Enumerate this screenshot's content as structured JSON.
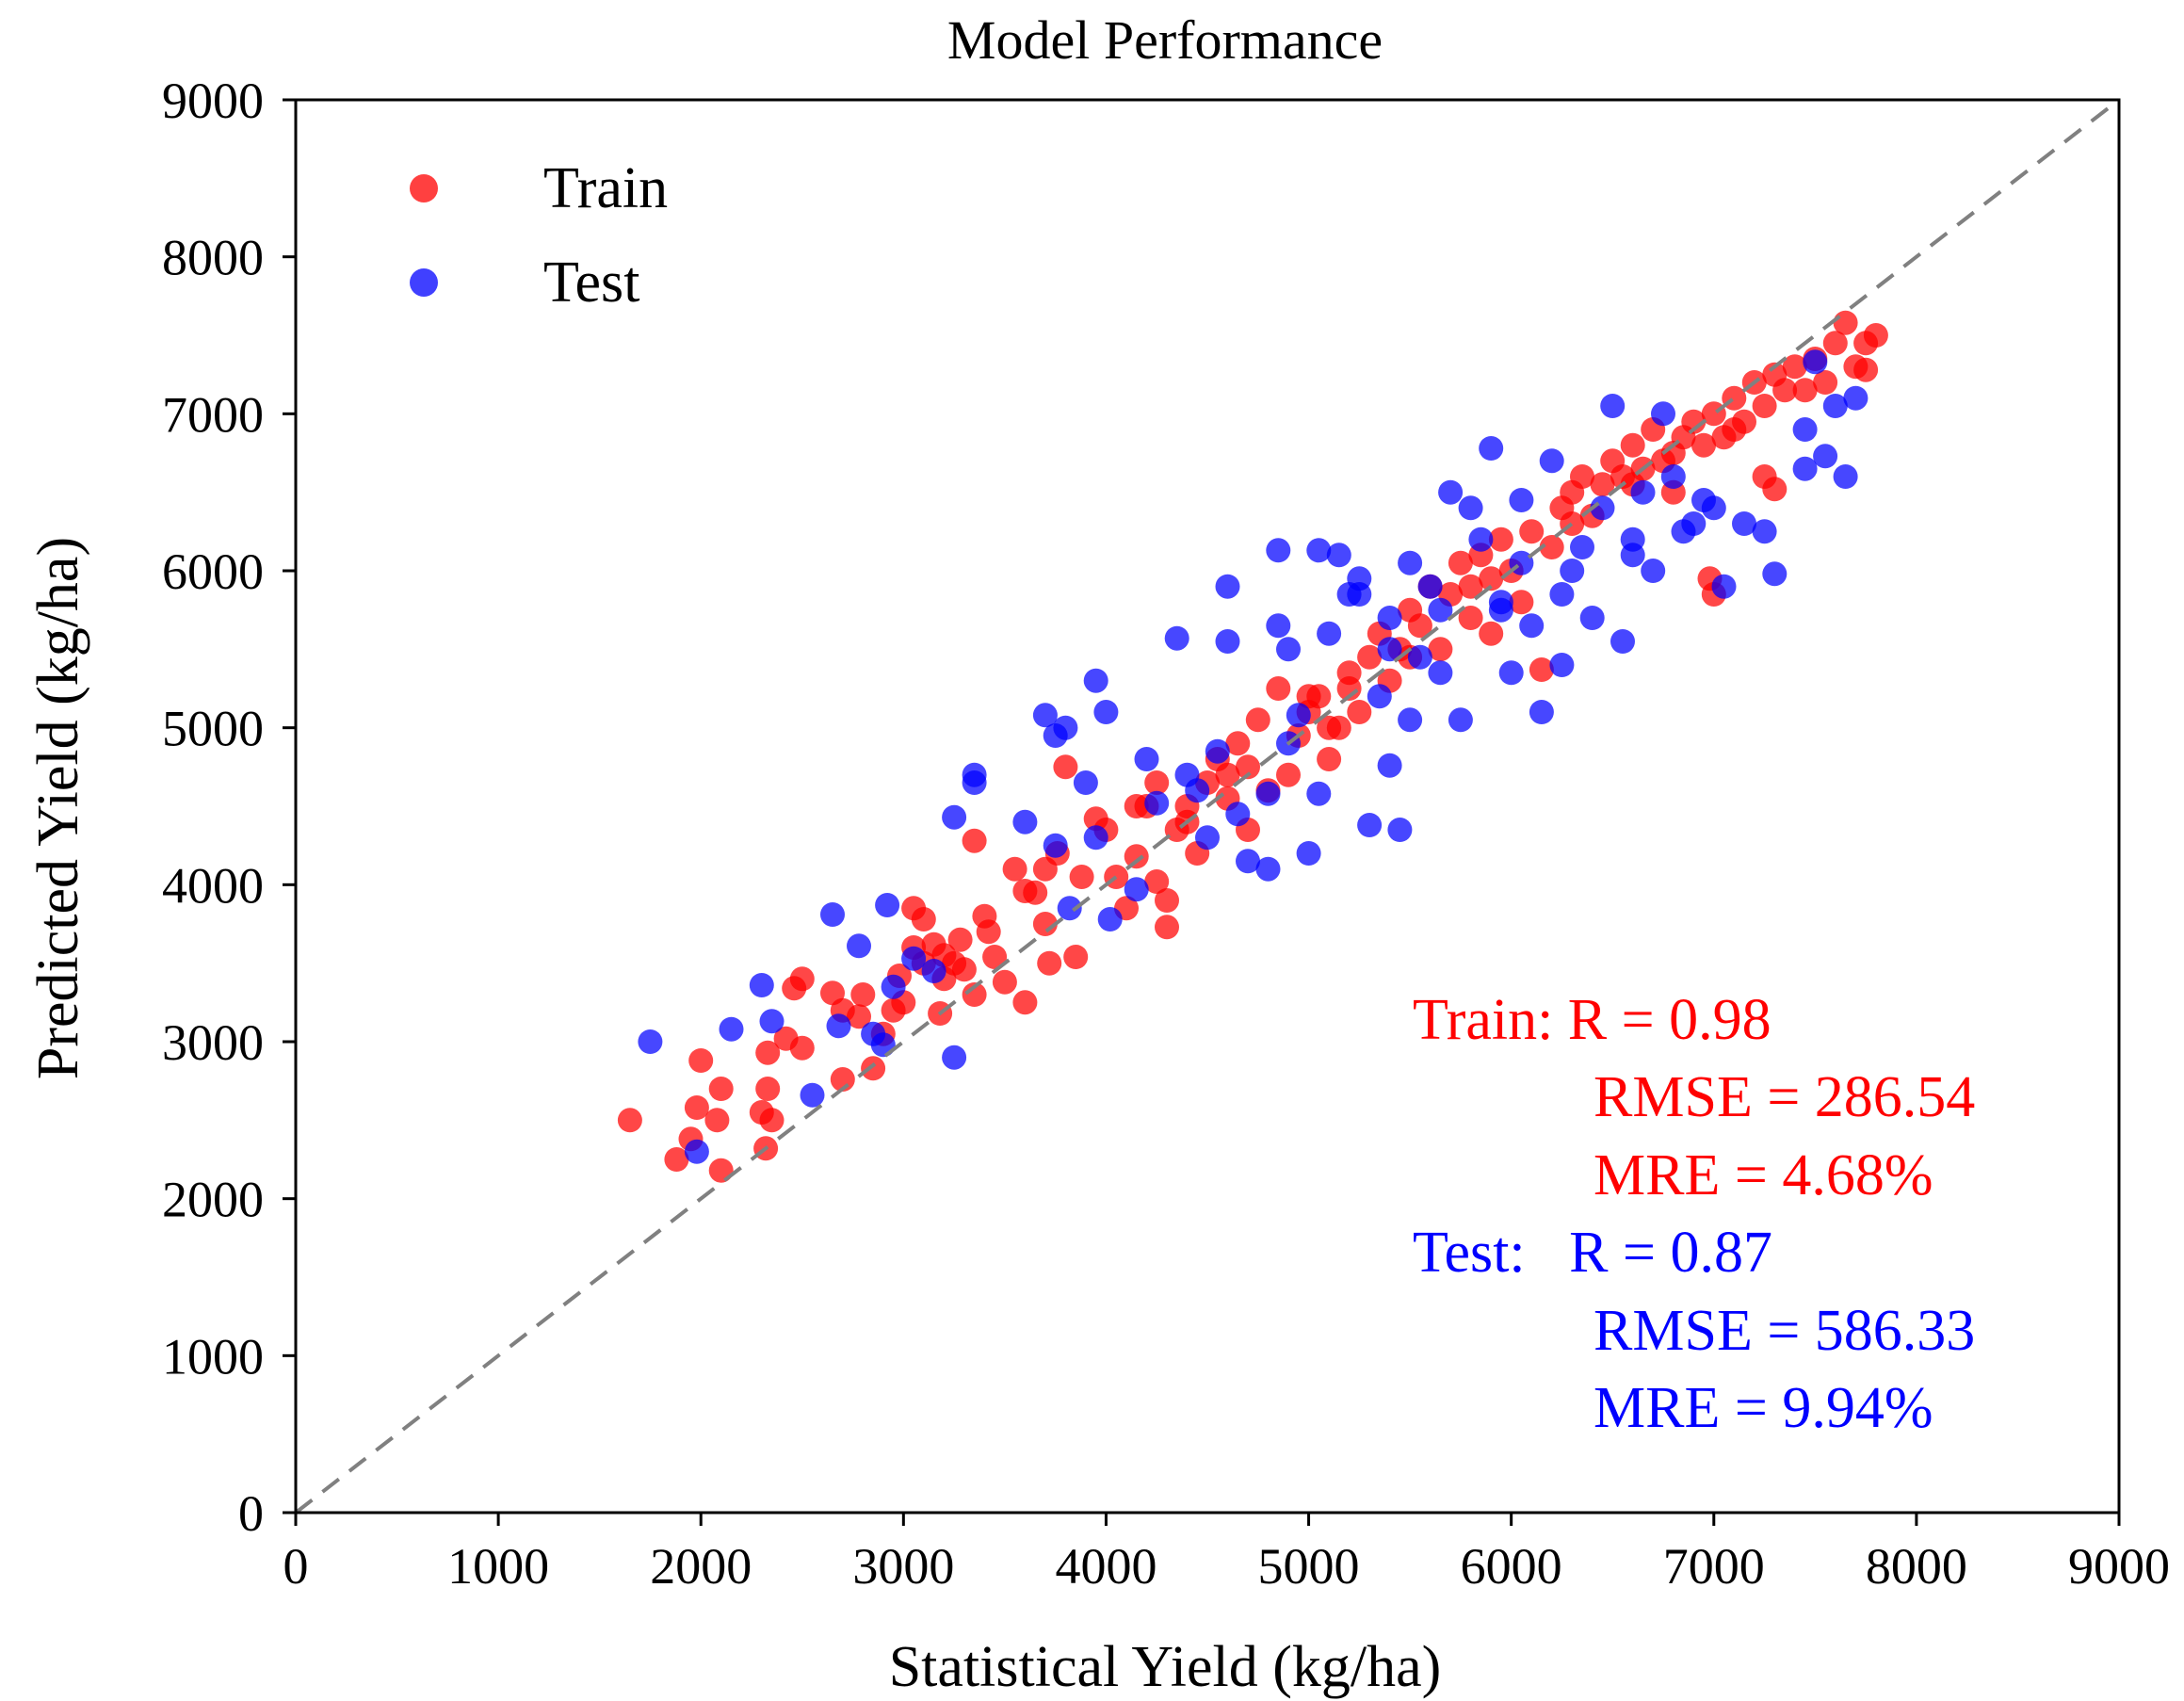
{
  "chart_data": {
    "type": "scatter",
    "title": "Model Performance",
    "xlabel": "Statistical Yield (kg/ha)",
    "ylabel": "Predicted Yield (kg/ha)",
    "xlim": [
      0,
      9000
    ],
    "ylim": [
      0,
      9000
    ],
    "xticks": [
      0,
      1000,
      2000,
      3000,
      4000,
      5000,
      6000,
      7000,
      8000,
      9000
    ],
    "yticks": [
      0,
      1000,
      2000,
      3000,
      4000,
      5000,
      6000,
      7000,
      8000,
      9000
    ],
    "grid": false,
    "legend": {
      "placement": "top-left",
      "entries": [
        "Train",
        "Test"
      ]
    },
    "reference_line": {
      "label": "1:1 line",
      "style": "dashed",
      "color": "#808080",
      "from": [
        0,
        0
      ],
      "to": [
        9000,
        9000
      ]
    },
    "series": [
      {
        "name": "Train",
        "color": "#ff0000",
        "points": [
          [
            1650,
            2500
          ],
          [
            1880,
            2250
          ],
          [
            1950,
            2380
          ],
          [
            2000,
            2880
          ],
          [
            1980,
            2580
          ],
          [
            2080,
            2500
          ],
          [
            2100,
            2700
          ],
          [
            2100,
            2180
          ],
          [
            2320,
            2320
          ],
          [
            2300,
            2550
          ],
          [
            2330,
            2700
          ],
          [
            2350,
            2500
          ],
          [
            2330,
            2930
          ],
          [
            2420,
            3020
          ],
          [
            2500,
            2960
          ],
          [
            2460,
            3340
          ],
          [
            2500,
            3400
          ],
          [
            2650,
            3310
          ],
          [
            2700,
            3200
          ],
          [
            2700,
            2760
          ],
          [
            2780,
            3160
          ],
          [
            2800,
            3300
          ],
          [
            2850,
            2830
          ],
          [
            2900,
            3050
          ],
          [
            2950,
            3200
          ],
          [
            2980,
            3420
          ],
          [
            3050,
            3600
          ],
          [
            3000,
            3250
          ],
          [
            3100,
            3500
          ],
          [
            3050,
            3850
          ],
          [
            3100,
            3780
          ],
          [
            3150,
            3620
          ],
          [
            3200,
            3550
          ],
          [
            3200,
            3400
          ],
          [
            3180,
            3180
          ],
          [
            3250,
            3500
          ],
          [
            3280,
            3650
          ],
          [
            3300,
            3460
          ],
          [
            3350,
            3300
          ],
          [
            3350,
            4280
          ],
          [
            3400,
            3800
          ],
          [
            3420,
            3700
          ],
          [
            3450,
            3540
          ],
          [
            3500,
            3380
          ],
          [
            3550,
            4100
          ],
          [
            3600,
            3250
          ],
          [
            3650,
            3950
          ],
          [
            3700,
            3750
          ],
          [
            3720,
            3500
          ],
          [
            3760,
            4200
          ],
          [
            3800,
            4750
          ],
          [
            3850,
            3540
          ],
          [
            3880,
            4050
          ],
          [
            3950,
            4420
          ],
          [
            4000,
            4350
          ],
          [
            4050,
            4050
          ],
          [
            4100,
            3850
          ],
          [
            4150,
            4180
          ],
          [
            4200,
            4500
          ],
          [
            4250,
            4020
          ],
          [
            4300,
            3900
          ],
          [
            4300,
            3730
          ],
          [
            4350,
            4350
          ],
          [
            4400,
            4500
          ],
          [
            4450,
            4200
          ],
          [
            4500,
            4650
          ],
          [
            4550,
            4800
          ],
          [
            4600,
            4550
          ],
          [
            4650,
            4900
          ],
          [
            4700,
            4350
          ],
          [
            4750,
            5050
          ],
          [
            4800,
            4600
          ],
          [
            4850,
            5250
          ],
          [
            4900,
            4700
          ],
          [
            4950,
            4950
          ],
          [
            5000,
            5100
          ],
          [
            5050,
            5200
          ],
          [
            5100,
            4800
          ],
          [
            5150,
            5000
          ],
          [
            5200,
            5350
          ],
          [
            5250,
            5100
          ],
          [
            5300,
            5450
          ],
          [
            5350,
            5600
          ],
          [
            5400,
            5300
          ],
          [
            5450,
            5500
          ],
          [
            5500,
            5750
          ],
          [
            5550,
            5650
          ],
          [
            5600,
            5900
          ],
          [
            5650,
            5500
          ],
          [
            5700,
            5850
          ],
          [
            5750,
            6050
          ],
          [
            5800,
            5700
          ],
          [
            5850,
            6100
          ],
          [
            5900,
            5950
          ],
          [
            5950,
            6200
          ],
          [
            6000,
            6000
          ],
          [
            6050,
            5800
          ],
          [
            6100,
            6250
          ],
          [
            6150,
            5370
          ],
          [
            6200,
            6150
          ],
          [
            6250,
            6400
          ],
          [
            6300,
            6500
          ],
          [
            6350,
            6600
          ],
          [
            6400,
            6350
          ],
          [
            6450,
            6550
          ],
          [
            6500,
            6700
          ],
          [
            6550,
            6600
          ],
          [
            6600,
            6800
          ],
          [
            6650,
            6650
          ],
          [
            6700,
            6900
          ],
          [
            6750,
            6700
          ],
          [
            6800,
            6500
          ],
          [
            6850,
            6850
          ],
          [
            6900,
            6950
          ],
          [
            6950,
            6800
          ],
          [
            7000,
            7000
          ],
          [
            7050,
            6850
          ],
          [
            7100,
            7100
          ],
          [
            7150,
            6950
          ],
          [
            7200,
            7200
          ],
          [
            7250,
            7050
          ],
          [
            7300,
            7250
          ],
          [
            7350,
            7150
          ],
          [
            7400,
            7300
          ],
          [
            7450,
            7150
          ],
          [
            7500,
            7350
          ],
          [
            7550,
            7200
          ],
          [
            7600,
            7450
          ],
          [
            7650,
            7580
          ],
          [
            7700,
            7300
          ],
          [
            7750,
            7450
          ],
          [
            7800,
            7500
          ],
          [
            7750,
            7280
          ],
          [
            7300,
            6520
          ],
          [
            7250,
            6600
          ],
          [
            7000,
            5850
          ],
          [
            6980,
            5950
          ],
          [
            5100,
            5000
          ],
          [
            5000,
            5200
          ],
          [
            5500,
            5450
          ],
          [
            5800,
            5900
          ],
          [
            4600,
            4700
          ],
          [
            4400,
            4400
          ],
          [
            6800,
            6750
          ],
          [
            6600,
            6550
          ],
          [
            7100,
            6900
          ],
          [
            4250,
            4650
          ],
          [
            3600,
            3960
          ],
          [
            3700,
            4100
          ],
          [
            4150,
            4500
          ],
          [
            4700,
            4750
          ],
          [
            5200,
            5250
          ],
          [
            5900,
            5600
          ],
          [
            6300,
            6300
          ]
        ]
      },
      {
        "name": "Test",
        "color": "#0000ff",
        "points": [
          [
            1750,
            3000
          ],
          [
            1980,
            2300
          ],
          [
            2150,
            3080
          ],
          [
            2300,
            3360
          ],
          [
            2350,
            3130
          ],
          [
            2550,
            2660
          ],
          [
            2650,
            3810
          ],
          [
            2680,
            3100
          ],
          [
            2780,
            3610
          ],
          [
            2850,
            3050
          ],
          [
            2900,
            2980
          ],
          [
            2920,
            3870
          ],
          [
            2950,
            3350
          ],
          [
            3050,
            3530
          ],
          [
            3150,
            3450
          ],
          [
            3250,
            4430
          ],
          [
            3250,
            2900
          ],
          [
            3350,
            4700
          ],
          [
            3350,
            4650
          ],
          [
            3600,
            4400
          ],
          [
            3700,
            5080
          ],
          [
            3750,
            4950
          ],
          [
            3800,
            5000
          ],
          [
            3820,
            3850
          ],
          [
            3750,
            4250
          ],
          [
            3900,
            4650
          ],
          [
            3950,
            5300
          ],
          [
            3950,
            4300
          ],
          [
            4000,
            5100
          ],
          [
            4020,
            3780
          ],
          [
            4200,
            4800
          ],
          [
            4150,
            3970
          ],
          [
            4250,
            4520
          ],
          [
            4350,
            5570
          ],
          [
            4400,
            4700
          ],
          [
            4450,
            4600
          ],
          [
            4500,
            4300
          ],
          [
            4550,
            4850
          ],
          [
            4600,
            5900
          ],
          [
            4600,
            5550
          ],
          [
            4700,
            4150
          ],
          [
            4800,
            4100
          ],
          [
            4800,
            4580
          ],
          [
            4850,
            5650
          ],
          [
            4850,
            6130
          ],
          [
            4900,
            5500
          ],
          [
            4950,
            5080
          ],
          [
            5000,
            4200
          ],
          [
            5050,
            6130
          ],
          [
            5050,
            4580
          ],
          [
            5100,
            5600
          ],
          [
            5150,
            6100
          ],
          [
            5200,
            5850
          ],
          [
            5250,
            5950
          ],
          [
            5300,
            4380
          ],
          [
            5400,
            5700
          ],
          [
            5400,
            4760
          ],
          [
            5450,
            4350
          ],
          [
            5500,
            6050
          ],
          [
            5550,
            5450
          ],
          [
            5600,
            5900
          ],
          [
            5650,
            5350
          ],
          [
            5700,
            6500
          ],
          [
            5750,
            5050
          ],
          [
            5800,
            6400
          ],
          [
            5850,
            6200
          ],
          [
            5900,
            6780
          ],
          [
            5950,
            5800
          ],
          [
            6000,
            5350
          ],
          [
            6050,
            6450
          ],
          [
            6100,
            5650
          ],
          [
            6150,
            5100
          ],
          [
            6200,
            6700
          ],
          [
            6250,
            5400
          ],
          [
            6300,
            6000
          ],
          [
            6350,
            6150
          ],
          [
            6400,
            5700
          ],
          [
            6450,
            6400
          ],
          [
            6500,
            7050
          ],
          [
            6550,
            5550
          ],
          [
            6600,
            6200
          ],
          [
            6650,
            6500
          ],
          [
            6700,
            6000
          ],
          [
            6750,
            7000
          ],
          [
            6800,
            6600
          ],
          [
            6850,
            6250
          ],
          [
            6900,
            6300
          ],
          [
            6950,
            6450
          ],
          [
            7000,
            6400
          ],
          [
            7050,
            5900
          ],
          [
            7150,
            6300
          ],
          [
            7250,
            6250
          ],
          [
            7300,
            5980
          ],
          [
            7450,
            6650
          ],
          [
            7500,
            7330
          ],
          [
            7550,
            6730
          ],
          [
            7600,
            7050
          ],
          [
            7650,
            6600
          ],
          [
            7700,
            7100
          ],
          [
            7450,
            6900
          ],
          [
            5250,
            5850
          ],
          [
            5500,
            5050
          ],
          [
            5350,
            5200
          ],
          [
            5950,
            5750
          ],
          [
            6250,
            5850
          ],
          [
            6600,
            6100
          ],
          [
            4650,
            4450
          ],
          [
            4900,
            4900
          ],
          [
            5650,
            5750
          ],
          [
            6050,
            6050
          ],
          [
            5400,
            5500
          ]
        ]
      }
    ],
    "annotations": [
      {
        "name": "train-r",
        "text": "Train: R = 0.98",
        "color": "#ff0000"
      },
      {
        "name": "train-rmse",
        "text": "RMSE = 286.54",
        "color": "#ff0000"
      },
      {
        "name": "train-mre",
        "text": "MRE = 4.68%",
        "color": "#ff0000"
      },
      {
        "name": "test-r",
        "text": "Test:   R = 0.87",
        "color": "#0000ff"
      },
      {
        "name": "test-rmse",
        "text": "RMSE = 586.33",
        "color": "#0000ff"
      },
      {
        "name": "test-mre",
        "text": "MRE = 9.94%",
        "color": "#0000ff"
      }
    ]
  }
}
